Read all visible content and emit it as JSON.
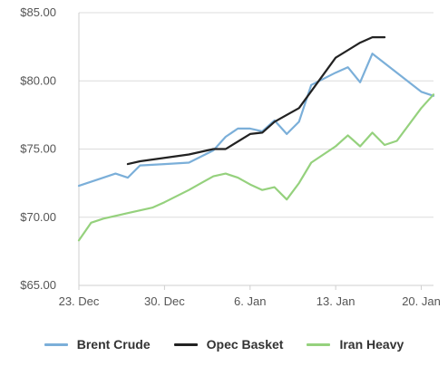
{
  "chart_data": {
    "type": "line",
    "title": "",
    "xlabel": "",
    "ylabel": "",
    "ylim": [
      65,
      85
    ],
    "grid": "horizontal",
    "legend_position": "bottom",
    "y_ticks": [
      "$65.00",
      "$70.00",
      "$75.00",
      "$80.00",
      "$85.00"
    ],
    "x_ticks": [
      "23. Dec",
      "30. Dec",
      "6. Jan",
      "13. Jan",
      "20. Jan"
    ],
    "series": [
      {
        "name": "Brent Crude",
        "color": "#7bafd9",
        "points": [
          [
            "2019-12-23",
            72.3
          ],
          [
            "2019-12-25",
            72.9
          ],
          [
            "2019-12-26",
            73.2
          ],
          [
            "2019-12-27",
            72.9
          ],
          [
            "2019-12-28",
            73.8
          ],
          [
            "2019-12-30",
            73.9
          ],
          [
            "2020-01-01",
            74.0
          ],
          [
            "2020-01-03",
            74.9
          ],
          [
            "2020-01-04",
            75.9
          ],
          [
            "2020-01-05",
            76.5
          ],
          [
            "2020-01-06",
            76.5
          ],
          [
            "2020-01-07",
            76.3
          ],
          [
            "2020-01-08",
            77.1
          ],
          [
            "2020-01-09",
            76.1
          ],
          [
            "2020-01-10",
            77.0
          ],
          [
            "2020-01-11",
            79.7
          ],
          [
            "2020-01-13",
            80.6
          ],
          [
            "2020-01-14",
            81.0
          ],
          [
            "2020-01-15",
            79.9
          ],
          [
            "2020-01-16",
            82.0
          ],
          [
            "2020-01-17",
            81.3
          ],
          [
            "2020-01-20",
            79.2
          ],
          [
            "2020-01-21",
            78.9
          ]
        ]
      },
      {
        "name": "Opec Basket",
        "color": "#222222",
        "points": [
          [
            "2019-12-27",
            73.9
          ],
          [
            "2019-12-28",
            74.1
          ],
          [
            "2020-01-01",
            74.6
          ],
          [
            "2020-01-03",
            75.0
          ],
          [
            "2020-01-04",
            75.0
          ],
          [
            "2020-01-06",
            76.1
          ],
          [
            "2020-01-07",
            76.2
          ],
          [
            "2020-01-08",
            77.0
          ],
          [
            "2020-01-10",
            78.0
          ],
          [
            "2020-01-13",
            81.7
          ],
          [
            "2020-01-15",
            82.8
          ],
          [
            "2020-01-16",
            83.2
          ],
          [
            "2020-01-17",
            83.2
          ]
        ]
      },
      {
        "name": "Iran Heavy",
        "color": "#95d17d",
        "points": [
          [
            "2019-12-23",
            68.3
          ],
          [
            "2019-12-24",
            69.6
          ],
          [
            "2019-12-25",
            69.9
          ],
          [
            "2019-12-27",
            70.3
          ],
          [
            "2019-12-29",
            70.7
          ],
          [
            "2019-12-30",
            71.1
          ],
          [
            "2020-01-01",
            72.0
          ],
          [
            "2020-01-02",
            72.5
          ],
          [
            "2020-01-03",
            73.0
          ],
          [
            "2020-01-04",
            73.2
          ],
          [
            "2020-01-05",
            72.9
          ],
          [
            "2020-01-06",
            72.4
          ],
          [
            "2020-01-07",
            72.0
          ],
          [
            "2020-01-08",
            72.2
          ],
          [
            "2020-01-09",
            71.3
          ],
          [
            "2020-01-10",
            72.5
          ],
          [
            "2020-01-11",
            74.0
          ],
          [
            "2020-01-13",
            75.2
          ],
          [
            "2020-01-14",
            76.0
          ],
          [
            "2020-01-15",
            75.2
          ],
          [
            "2020-01-16",
            76.2
          ],
          [
            "2020-01-17",
            75.3
          ],
          [
            "2020-01-18",
            75.6
          ],
          [
            "2020-01-20",
            78.0
          ],
          [
            "2020-01-21",
            79.0
          ]
        ]
      }
    ]
  }
}
